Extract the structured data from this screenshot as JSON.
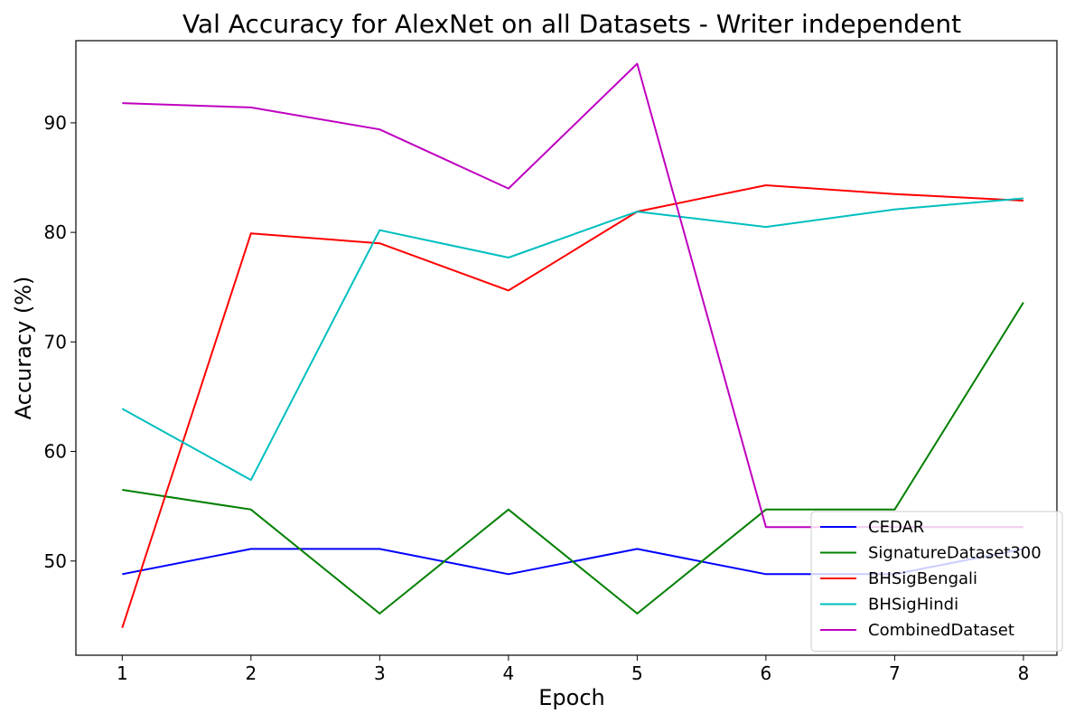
{
  "chart_data": {
    "type": "line",
    "title": "Val Accuracy for AlexNet on all Datasets - Writer independent",
    "xlabel": "Epoch",
    "ylabel": "Accuracy (%)",
    "x": [
      1,
      2,
      3,
      4,
      5,
      6,
      7,
      8
    ],
    "xlim": [
      0.64,
      8.26
    ],
    "ylim": [
      41.4,
      97.5
    ],
    "xticks": [
      1,
      2,
      3,
      4,
      5,
      6,
      7,
      8
    ],
    "yticks": [
      50,
      60,
      70,
      80,
      90
    ],
    "grid": false,
    "legend_position": "lower-right",
    "series": [
      {
        "name": "CEDAR",
        "color": "#0000ff",
        "values": [
          48.8,
          51.1,
          51.1,
          48.8,
          51.1,
          48.8,
          48.8,
          51.1
        ]
      },
      {
        "name": "SignatureDataset300",
        "color": "#008000",
        "values": [
          56.5,
          54.7,
          45.2,
          54.7,
          45.2,
          54.7,
          54.7,
          73.6
        ]
      },
      {
        "name": "BHSigBengali",
        "color": "#ff0000",
        "values": [
          43.9,
          79.9,
          79.0,
          74.7,
          81.9,
          84.3,
          83.5,
          82.9
        ]
      },
      {
        "name": "BHSigHindi",
        "color": "#00bfbf",
        "values": [
          63.9,
          57.4,
          80.2,
          77.7,
          81.9,
          80.5,
          82.1,
          83.1
        ]
      },
      {
        "name": "CombinedDataset",
        "color": "#bf00bf",
        "values": [
          91.8,
          91.4,
          89.4,
          84.0,
          95.4,
          53.1,
          53.1,
          53.1
        ]
      }
    ]
  }
}
